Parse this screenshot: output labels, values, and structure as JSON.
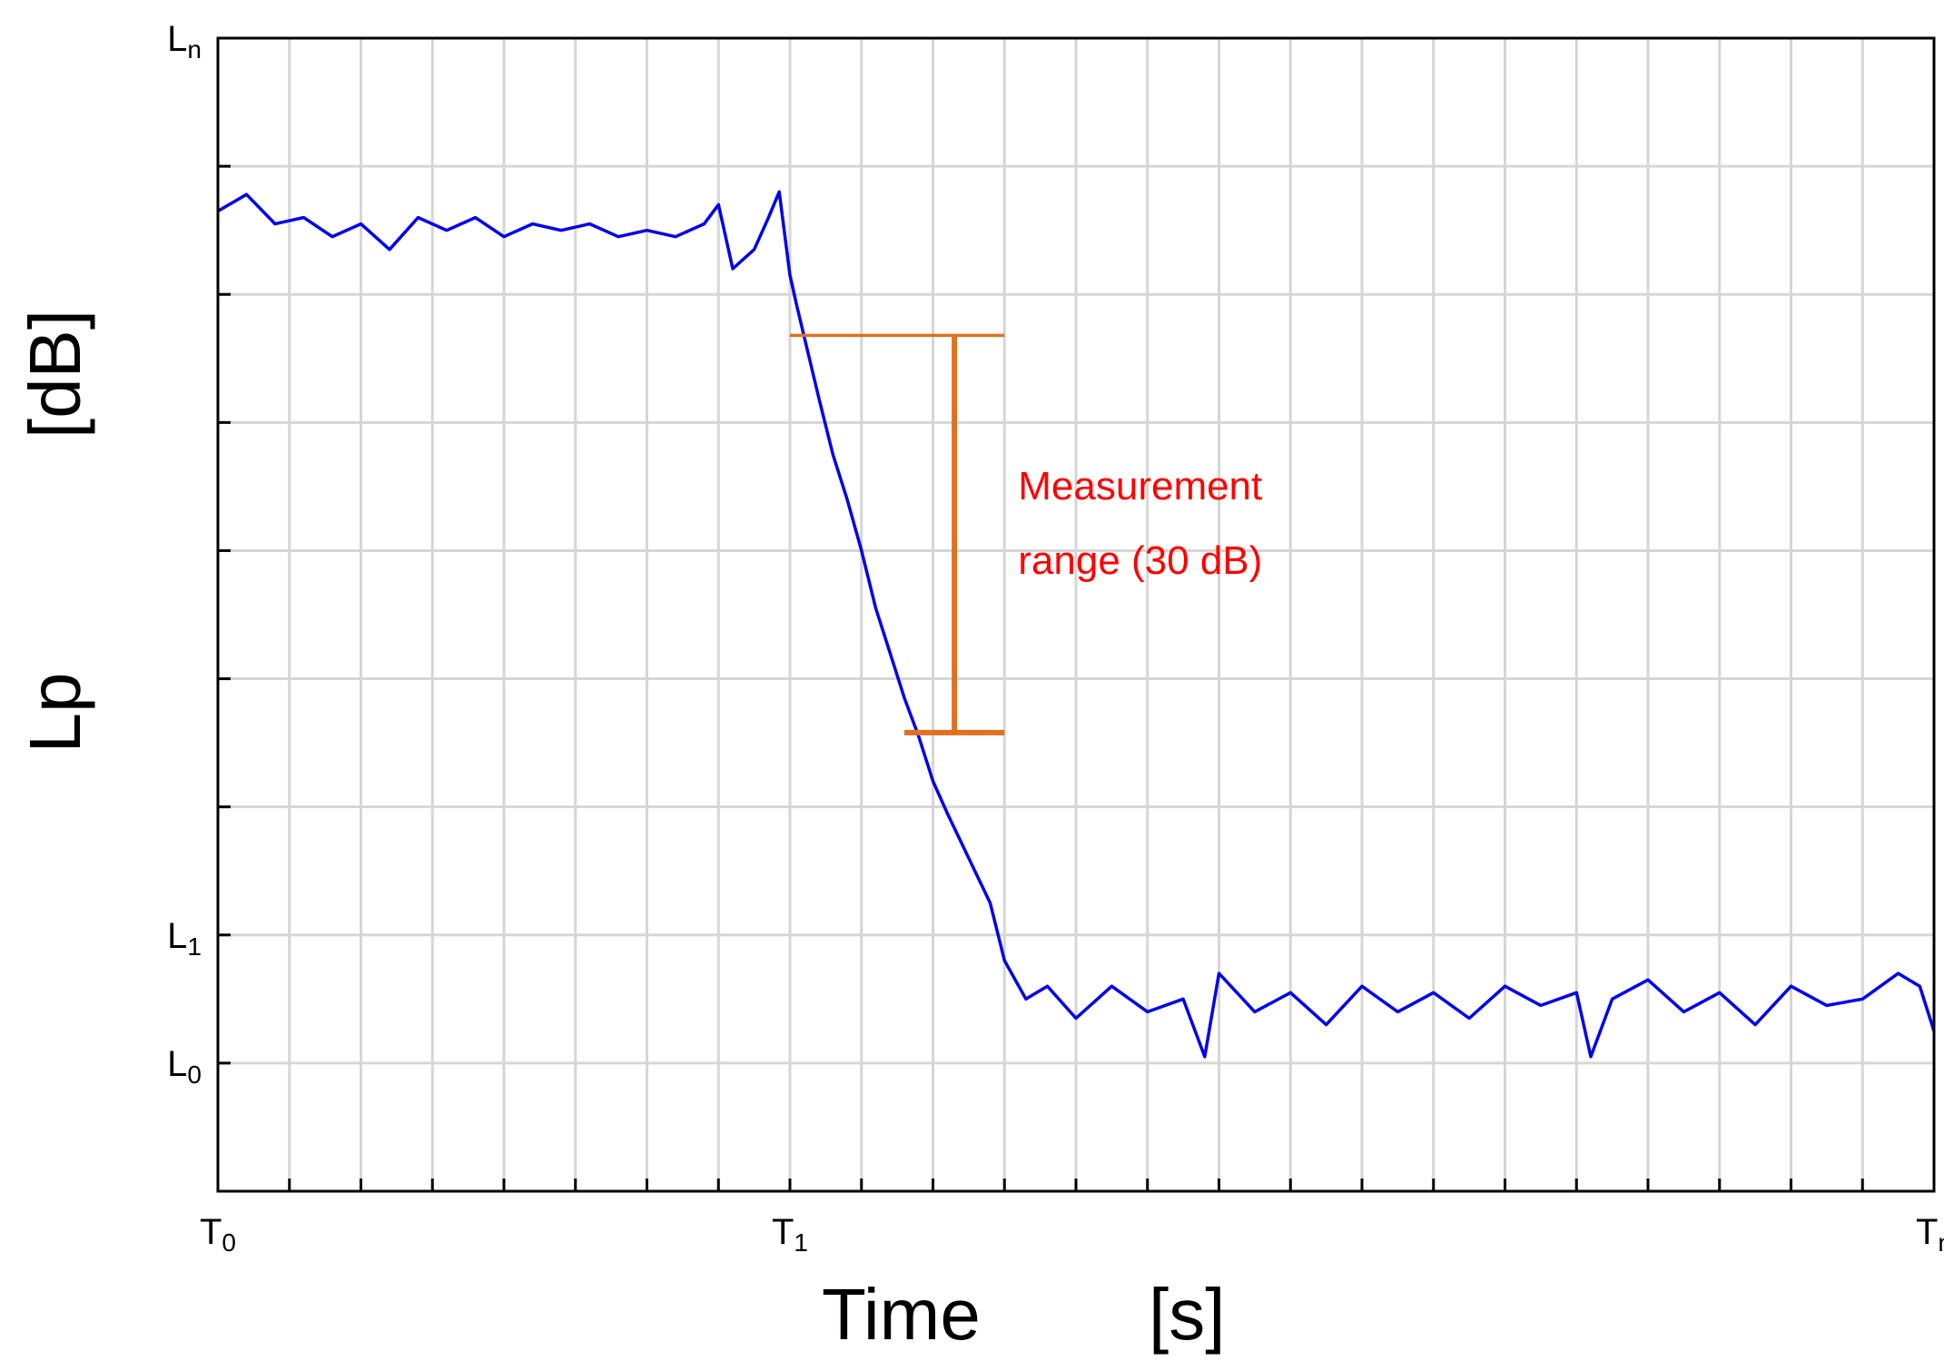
{
  "chart_data": {
    "type": "line",
    "x_label": {
      "main": "Time",
      "unit": "[s]"
    },
    "y_label": {
      "main": "Lp",
      "unit": "[dB]"
    },
    "x_range": [
      0,
      24
    ],
    "y_range": [
      -1,
      8
    ],
    "grid": true,
    "grid_color": "#d6d6d6",
    "series_color": "#0000ee",
    "annotation_color": "#e07020",
    "x_ticks": [
      {
        "value": 0,
        "base": "T",
        "sub": "0"
      },
      {
        "value": 8,
        "base": "T",
        "sub": "1"
      },
      {
        "value": 24,
        "base": "T",
        "sub": "n"
      }
    ],
    "y_ticks": [
      {
        "value": 0,
        "base": "L",
        "sub": "0"
      },
      {
        "value": 1,
        "base": "L",
        "sub": "1"
      },
      {
        "value": 8,
        "base": "L",
        "sub": "n"
      }
    ],
    "annotation": {
      "text_line1": "Measurement",
      "text_line2": "range (30 dB)",
      "top_level": 5.68,
      "bottom_level": 2.58,
      "x_marker": 10.3,
      "top_x_start": 8.0,
      "bottom_x_start": 9.6,
      "x_end": 11.0
    },
    "series": [
      {
        "points": [
          [
            0,
            6.65
          ],
          [
            0.4,
            6.78
          ],
          [
            0.8,
            6.55
          ],
          [
            1.2,
            6.6
          ],
          [
            1.6,
            6.45
          ],
          [
            2,
            6.55
          ],
          [
            2.4,
            6.35
          ],
          [
            2.8,
            6.6
          ],
          [
            3.2,
            6.5
          ],
          [
            3.6,
            6.6
          ],
          [
            4,
            6.45
          ],
          [
            4.4,
            6.55
          ],
          [
            4.8,
            6.5
          ],
          [
            5.2,
            6.55
          ],
          [
            5.6,
            6.45
          ],
          [
            6,
            6.5
          ],
          [
            6.4,
            6.45
          ],
          [
            6.8,
            6.55
          ],
          [
            7.0,
            6.7
          ],
          [
            7.2,
            6.2
          ],
          [
            7.5,
            6.35
          ],
          [
            7.7,
            6.6
          ],
          [
            7.85,
            6.8
          ],
          [
            8.0,
            6.15
          ],
          [
            8.1,
            5.9
          ],
          [
            8.25,
            5.55
          ],
          [
            8.4,
            5.2
          ],
          [
            8.6,
            4.75
          ],
          [
            8.8,
            4.4
          ],
          [
            9.0,
            4.0
          ],
          [
            9.2,
            3.55
          ],
          [
            9.4,
            3.2
          ],
          [
            9.6,
            2.85
          ],
          [
            9.8,
            2.55
          ],
          [
            10.0,
            2.2
          ],
          [
            10.2,
            1.95
          ],
          [
            10.5,
            1.6
          ],
          [
            10.8,
            1.25
          ],
          [
            11.0,
            0.8
          ],
          [
            11.3,
            0.5
          ],
          [
            11.6,
            0.6
          ],
          [
            12,
            0.35
          ],
          [
            12.5,
            0.6
          ],
          [
            13,
            0.4
          ],
          [
            13.5,
            0.5
          ],
          [
            13.8,
            0.05
          ],
          [
            14,
            0.7
          ],
          [
            14.5,
            0.4
          ],
          [
            15,
            0.55
          ],
          [
            15.5,
            0.3
          ],
          [
            16,
            0.6
          ],
          [
            16.5,
            0.4
          ],
          [
            17,
            0.55
          ],
          [
            17.5,
            0.35
          ],
          [
            18,
            0.6
          ],
          [
            18.5,
            0.45
          ],
          [
            19,
            0.55
          ],
          [
            19.2,
            0.05
          ],
          [
            19.5,
            0.5
          ],
          [
            20,
            0.65
          ],
          [
            20.5,
            0.4
          ],
          [
            21,
            0.55
          ],
          [
            21.5,
            0.3
          ],
          [
            22,
            0.6
          ],
          [
            22.5,
            0.45
          ],
          [
            23,
            0.5
          ],
          [
            23.5,
            0.7
          ],
          [
            23.8,
            0.6
          ],
          [
            24,
            0.25
          ]
        ]
      }
    ]
  }
}
